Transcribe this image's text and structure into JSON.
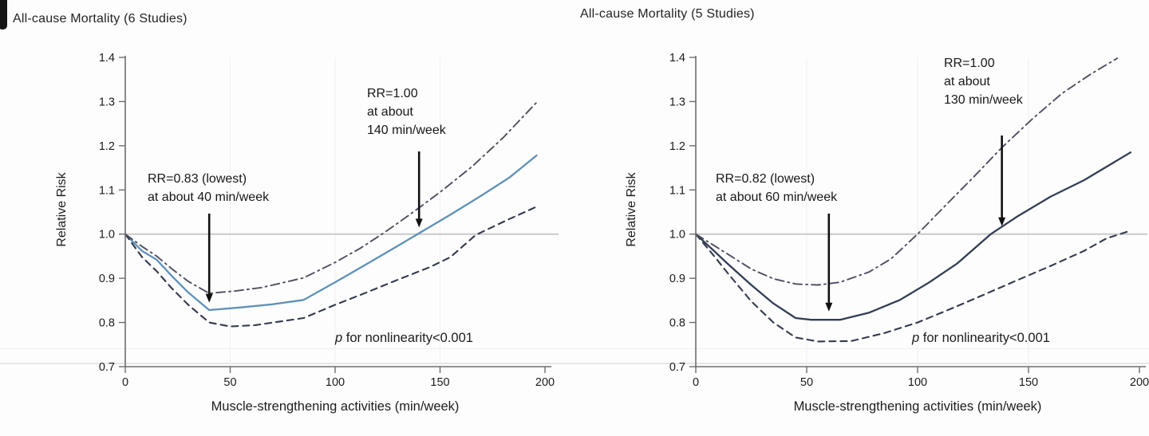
{
  "palette": {
    "axis": "#6e6e6e",
    "reference_line": "#c9c9c9",
    "gridline": "#f0f0f0",
    "text": "#1c1c1c",
    "arrow": "#111111"
  },
  "chart_data": [
    {
      "type": "line",
      "title": "All-cause Mortality (6 Studies)",
      "xlabel": "Muscle-strengthening activities (min/week)",
      "ylabel": "Relative Risk",
      "xlim": [
        0,
        200
      ],
      "ylim": [
        0.7,
        1.4
      ],
      "x_ticks": [
        "0",
        "50",
        "100",
        "150",
        "200"
      ],
      "y_ticks": [
        "1.4",
        "1.3",
        "1.2",
        "1.1",
        "1.0",
        "0.9",
        "0.8",
        "0.7"
      ],
      "reference_line_y": 1.0,
      "legend": "none",
      "grid": "faint-vertical",
      "p_annotation": {
        "italic": "p",
        "rest": " for nonlinearity<0.001"
      },
      "annotations": [
        {
          "text": "RR=0.83 (lowest)\nat about 40 min/week",
          "arrow_x": 40,
          "arrow_tip_rr": 0.845
        },
        {
          "text": "RR=1.00\nat about\n140 min/week",
          "arrow_x": 140,
          "arrow_tip_rr": 1.015
        }
      ],
      "series": [
        {
          "name": "estimate",
          "style": "solid",
          "color": "#5e91b8",
          "points": [
            [
              0,
              1.0
            ],
            [
              8,
              0.962
            ],
            [
              15,
              0.942
            ],
            [
              22,
              0.906
            ],
            [
              30,
              0.868
            ],
            [
              40,
              0.828
            ],
            [
              55,
              0.834
            ],
            [
              70,
              0.841
            ],
            [
              85,
              0.851
            ],
            [
              100,
              0.891
            ],
            [
              115,
              0.932
            ],
            [
              128,
              0.968
            ],
            [
              140,
              1.002
            ],
            [
              155,
              1.044
            ],
            [
              170,
              1.088
            ],
            [
              183,
              1.128
            ],
            [
              196,
              1.178
            ]
          ]
        },
        {
          "name": "lower-ci",
          "style": "dashed",
          "color": "#343a4e",
          "points": [
            [
              0,
              1.0
            ],
            [
              8,
              0.948
            ],
            [
              15,
              0.916
            ],
            [
              22,
              0.878
            ],
            [
              30,
              0.84
            ],
            [
              40,
              0.8
            ],
            [
              50,
              0.791
            ],
            [
              62,
              0.794
            ],
            [
              85,
              0.81
            ],
            [
              100,
              0.84
            ],
            [
              115,
              0.868
            ],
            [
              130,
              0.897
            ],
            [
              145,
              0.925
            ],
            [
              155,
              0.948
            ],
            [
              167,
              0.998
            ],
            [
              182,
              1.032
            ],
            [
              196,
              1.062
            ]
          ]
        },
        {
          "name": "upper-ci",
          "style": "dashdot",
          "color": "#4d4f60",
          "points": [
            [
              0,
              1.0
            ],
            [
              8,
              0.972
            ],
            [
              15,
              0.95
            ],
            [
              22,
              0.922
            ],
            [
              30,
              0.893
            ],
            [
              40,
              0.866
            ],
            [
              52,
              0.871
            ],
            [
              65,
              0.879
            ],
            [
              85,
              0.901
            ],
            [
              100,
              0.936
            ],
            [
              112,
              0.968
            ],
            [
              123,
              1.002
            ],
            [
              135,
              1.042
            ],
            [
              150,
              1.095
            ],
            [
              165,
              1.152
            ],
            [
              180,
              1.218
            ],
            [
              196,
              1.298
            ]
          ]
        }
      ]
    },
    {
      "type": "line",
      "title": "All-cause Mortality (5 Studies)",
      "xlabel": "Muscle-strengthening activities (min/week)",
      "ylabel": "Relative Risk",
      "xlim": [
        0,
        200
      ],
      "ylim": [
        0.7,
        1.4
      ],
      "x_ticks": [
        "0",
        "50",
        "100",
        "150",
        "200"
      ],
      "y_ticks": [
        "1.4",
        "1.3",
        "1.2",
        "1.1",
        "1.0",
        "0.9",
        "0.8",
        "0.7"
      ],
      "reference_line_y": 1.0,
      "legend": "none",
      "grid": "faint-vertical",
      "p_annotation": {
        "italic": "p",
        "rest": " for nonlinearity<0.001"
      },
      "annotations": [
        {
          "text": "RR=0.82 (lowest)\nat about 60 min/week",
          "arrow_x": 60,
          "arrow_tip_rr": 0.825
        },
        {
          "text": "RR=1.00\nat about\n130 min/week",
          "arrow_x": 138,
          "arrow_tip_rr": 1.018
        }
      ],
      "series": [
        {
          "name": "estimate",
          "style": "solid",
          "color": "#333d55",
          "points": [
            [
              0,
              1.0
            ],
            [
              8,
              0.963
            ],
            [
              15,
              0.93
            ],
            [
              25,
              0.885
            ],
            [
              35,
              0.843
            ],
            [
              45,
              0.81
            ],
            [
              52,
              0.806
            ],
            [
              65,
              0.806
            ],
            [
              78,
              0.822
            ],
            [
              92,
              0.851
            ],
            [
              105,
              0.89
            ],
            [
              118,
              0.934
            ],
            [
              133,
              1.0
            ],
            [
              145,
              1.04
            ],
            [
              160,
              1.085
            ],
            [
              175,
              1.122
            ],
            [
              196,
              1.185
            ]
          ]
        },
        {
          "name": "lower-ci",
          "style": "dashed",
          "color": "#343a4e",
          "points": [
            [
              0,
              1.0
            ],
            [
              8,
              0.952
            ],
            [
              15,
              0.908
            ],
            [
              25,
              0.848
            ],
            [
              35,
              0.8
            ],
            [
              45,
              0.766
            ],
            [
              55,
              0.757
            ],
            [
              70,
              0.758
            ],
            [
              85,
              0.776
            ],
            [
              100,
              0.8
            ],
            [
              115,
              0.831
            ],
            [
              130,
              0.863
            ],
            [
              145,
              0.896
            ],
            [
              160,
              0.928
            ],
            [
              175,
              0.962
            ],
            [
              185,
              0.99
            ],
            [
              196,
              1.008
            ]
          ]
        },
        {
          "name": "upper-ci",
          "style": "dashdot",
          "color": "#4d4f60",
          "points": [
            [
              0,
              1.0
            ],
            [
              8,
              0.975
            ],
            [
              15,
              0.953
            ],
            [
              25,
              0.921
            ],
            [
              35,
              0.899
            ],
            [
              45,
              0.887
            ],
            [
              55,
              0.885
            ],
            [
              65,
              0.891
            ],
            [
              78,
              0.914
            ],
            [
              88,
              0.944
            ],
            [
              100,
              1.0
            ],
            [
              112,
              1.062
            ],
            [
              125,
              1.128
            ],
            [
              138,
              1.196
            ],
            [
              152,
              1.262
            ],
            [
              165,
              1.318
            ],
            [
              178,
              1.362
            ],
            [
              190,
              1.398
            ]
          ]
        }
      ]
    }
  ]
}
